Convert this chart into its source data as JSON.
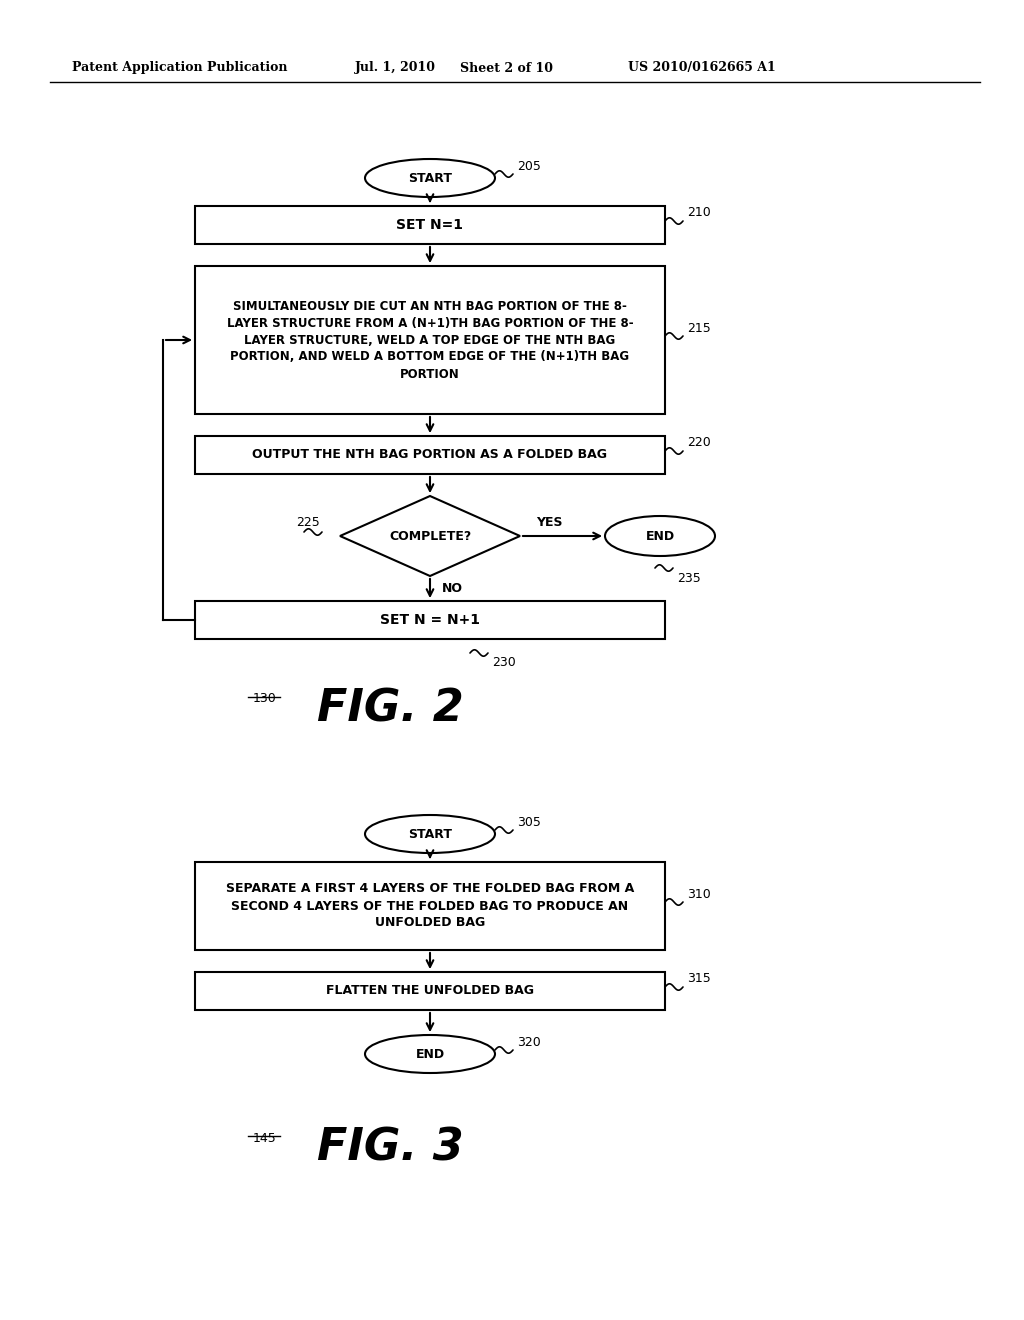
{
  "bg_color": "#ffffff",
  "header_text": "Patent Application Publication",
  "header_date": "Jul. 1, 2010",
  "header_sheet": "Sheet 2 of 10",
  "header_patent": "US 2010/0162665 A1",
  "fig2_label": "FIG. 2",
  "fig2_ref": "130",
  "fig3_label": "FIG. 3",
  "fig3_ref": "145",
  "fig2": {
    "start_label": "START",
    "start_ref": "205",
    "box1_text": "SET N=1",
    "box1_ref": "210",
    "box2_text": "SIMULTANEOUSLY DIE CUT AN NTH BAG PORTION OF THE 8-\nLAYER STRUCTURE FROM A (N+1)TH BAG PORTION OF THE 8-\nLAYER STRUCTURE, WELD A TOP EDGE OF THE NTH BAG\nPORTION, AND WELD A BOTTOM EDGE OF THE (N+1)TH BAG\nPORTION",
    "box2_ref": "215",
    "box3_text": "OUTPUT THE NTH BAG PORTION AS A FOLDED BAG",
    "box3_ref": "220",
    "diamond_text": "COMPLETE?",
    "diamond_ref": "225",
    "yes_label": "YES",
    "end_label": "END",
    "end_ref": "235",
    "no_label": "NO",
    "box4_text": "SET N = N+1",
    "box4_ref": "230"
  },
  "fig3": {
    "start_label": "START",
    "start_ref": "305",
    "box1_text": "SEPARATE A FIRST 4 LAYERS OF THE FOLDED BAG FROM A\nSECOND 4 LAYERS OF THE FOLDED BAG TO PRODUCE AN\nUNFOLDED BAG",
    "box1_ref": "310",
    "box2_text": "FLATTEN THE UNFOLDED BAG",
    "box2_ref": "315",
    "end_label": "END",
    "end_ref": "320"
  }
}
